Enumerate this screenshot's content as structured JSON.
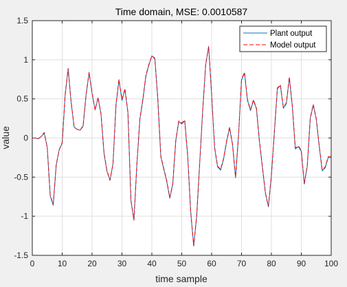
{
  "chart_data": {
    "type": "line",
    "title": "Time domain,  MSE: 0.0010587",
    "xlabel": "time sample",
    "ylabel": "value",
    "xlim": [
      0,
      100
    ],
    "ylim": [
      -1.5,
      1.5
    ],
    "x_ticks": [
      0,
      10,
      20,
      30,
      40,
      50,
      60,
      70,
      80,
      90,
      100
    ],
    "y_ticks": [
      -1.5,
      -1,
      -0.5,
      0,
      0.5,
      1,
      1.5
    ],
    "x_tick_labels": [
      "0",
      "10",
      "20",
      "30",
      "40",
      "50",
      "60",
      "70",
      "80",
      "90",
      "100"
    ],
    "y_tick_labels": [
      "-1.5",
      "-1",
      "-0.5",
      "0",
      "0.5",
      "1",
      "1.5"
    ],
    "grid": true,
    "legend_position": "top-right",
    "x": [
      0,
      1,
      2,
      3,
      4,
      5,
      6,
      7,
      8,
      9,
      10,
      11,
      12,
      13,
      14,
      15,
      16,
      17,
      18,
      19,
      20,
      21,
      22,
      23,
      24,
      25,
      26,
      27,
      28,
      29,
      30,
      31,
      32,
      33,
      34,
      35,
      36,
      37,
      38,
      39,
      40,
      41,
      42,
      43,
      44,
      45,
      46,
      47,
      48,
      49,
      50,
      51,
      52,
      53,
      54,
      55,
      56,
      57,
      58,
      59,
      60,
      61,
      62,
      63,
      64,
      65,
      66,
      67,
      68,
      69,
      70,
      71,
      72,
      73,
      74,
      75,
      76,
      77,
      78,
      79,
      80,
      81,
      82,
      83,
      84,
      85,
      86,
      87,
      88,
      89,
      90,
      91,
      92,
      93,
      94,
      95,
      96,
      97,
      98,
      99,
      100
    ],
    "series": [
      {
        "name": "Plant output",
        "color": "#0072bd",
        "dash": "solid",
        "values": [
          0.0,
          0.0,
          -0.01,
          0.02,
          0.06,
          -0.12,
          -0.74,
          -0.86,
          -0.35,
          -0.15,
          -0.07,
          0.55,
          0.88,
          0.45,
          0.14,
          0.11,
          0.1,
          0.15,
          0.55,
          0.83,
          0.57,
          0.36,
          0.51,
          0.3,
          -0.2,
          -0.43,
          -0.54,
          -0.33,
          0.42,
          0.74,
          0.48,
          0.62,
          0.32,
          -0.8,
          -1.05,
          -0.33,
          0.24,
          0.49,
          0.79,
          0.93,
          1.05,
          1.02,
          0.49,
          -0.24,
          -0.4,
          -0.56,
          -0.77,
          -0.59,
          -0.04,
          0.21,
          0.18,
          0.22,
          -0.24,
          -0.95,
          -1.38,
          -1.0,
          -0.33,
          0.34,
          0.93,
          1.17,
          0.55,
          -0.13,
          -0.37,
          -0.41,
          -0.27,
          -0.05,
          0.13,
          -0.09,
          -0.51,
          0.03,
          0.74,
          0.83,
          0.48,
          0.35,
          0.48,
          0.37,
          -0.05,
          -0.38,
          -0.71,
          -0.88,
          -0.48,
          0.08,
          0.63,
          0.67,
          0.38,
          0.44,
          0.77,
          0.4,
          -0.14,
          -0.11,
          -0.17,
          -0.59,
          -0.36,
          0.25,
          0.42,
          0.24,
          -0.11,
          -0.42,
          -0.38,
          -0.25,
          -0.25
        ]
      },
      {
        "name": "Model output",
        "color": "#ff0000",
        "dash": "dashed",
        "values": [
          0.0,
          0.0,
          -0.01,
          0.02,
          0.07,
          -0.12,
          -0.73,
          -0.85,
          -0.34,
          -0.15,
          -0.06,
          0.56,
          0.89,
          0.46,
          0.14,
          0.11,
          0.1,
          0.16,
          0.56,
          0.84,
          0.58,
          0.36,
          0.52,
          0.31,
          -0.19,
          -0.42,
          -0.54,
          -0.33,
          0.43,
          0.75,
          0.49,
          0.63,
          0.33,
          -0.79,
          -1.05,
          -0.33,
          0.25,
          0.5,
          0.8,
          0.94,
          1.05,
          1.01,
          0.5,
          -0.23,
          -0.39,
          -0.55,
          -0.76,
          -0.58,
          -0.03,
          0.22,
          0.19,
          0.23,
          -0.23,
          -0.94,
          -1.38,
          -0.99,
          -0.32,
          0.35,
          0.94,
          1.17,
          0.56,
          -0.12,
          -0.36,
          -0.4,
          -0.26,
          -0.04,
          0.14,
          -0.08,
          -0.5,
          0.04,
          0.75,
          0.84,
          0.49,
          0.36,
          0.49,
          0.38,
          -0.04,
          -0.37,
          -0.7,
          -0.87,
          -0.47,
          0.09,
          0.64,
          0.68,
          0.39,
          0.45,
          0.78,
          0.41,
          -0.13,
          -0.1,
          -0.16,
          -0.58,
          -0.35,
          0.26,
          0.43,
          0.25,
          -0.1,
          -0.41,
          -0.37,
          -0.24,
          -0.24
        ]
      }
    ]
  }
}
